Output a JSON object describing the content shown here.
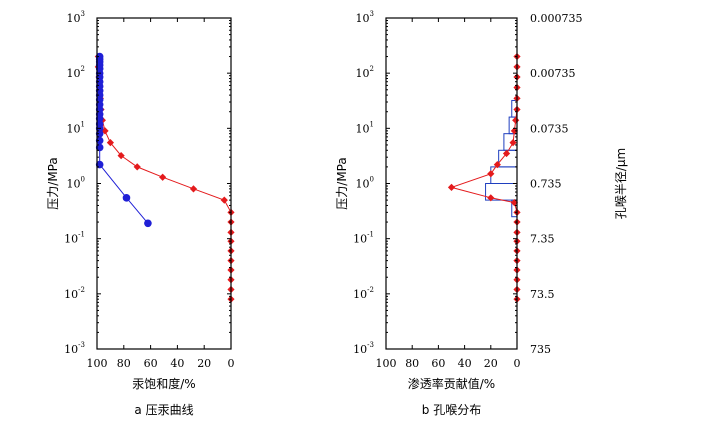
{
  "chart_data": [
    {
      "type": "line",
      "caption": "a 压汞曲线",
      "xlabel": "汞饱和度/%",
      "ylabel": "压力/MPa",
      "xlim": [
        100,
        0
      ],
      "ylim": [
        0.001,
        1000
      ],
      "y_scale": "log",
      "x_ticks": [
        "100",
        "80",
        "60",
        "40",
        "20",
        "0"
      ],
      "y_ticks": [
        {
          "base": "10",
          "exp": "3"
        },
        {
          "base": "10",
          "exp": "2"
        },
        {
          "base": "10",
          "exp": "1"
        },
        {
          "base": "10",
          "exp": "0"
        },
        {
          "base": "10",
          "exp": "-1"
        },
        {
          "base": "10",
          "exp": "-2"
        },
        {
          "base": "10",
          "exp": "-3"
        }
      ],
      "series": [
        {
          "color": "#e41a1c",
          "marker": "diamond",
          "points": [
            {
              "x": 0,
              "y": 0.008
            },
            {
              "x": 0,
              "y": 0.012
            },
            {
              "x": 0,
              "y": 0.018
            },
            {
              "x": 0,
              "y": 0.027
            },
            {
              "x": 0,
              "y": 0.04
            },
            {
              "x": 0,
              "y": 0.06
            },
            {
              "x": 0,
              "y": 0.09
            },
            {
              "x": 0,
              "y": 0.13
            },
            {
              "x": 0,
              "y": 0.2
            },
            {
              "x": 0,
              "y": 0.3
            },
            {
              "x": 5,
              "y": 0.5
            },
            {
              "x": 28,
              "y": 0.8
            },
            {
              "x": 51,
              "y": 1.3
            },
            {
              "x": 70,
              "y": 2.0
            },
            {
              "x": 82,
              "y": 3.2
            },
            {
              "x": 90,
              "y": 5.5
            },
            {
              "x": 94,
              "y": 9
            },
            {
              "x": 96,
              "y": 14
            },
            {
              "x": 97,
              "y": 22
            },
            {
              "x": 97.5,
              "y": 35
            },
            {
              "x": 98,
              "y": 55
            },
            {
              "x": 98.5,
              "y": 85
            },
            {
              "x": 99,
              "y": 130
            },
            {
              "x": 99,
              "y": 200
            }
          ]
        },
        {
          "color": "#1f1fd6",
          "marker": "circle",
          "points": [
            {
              "x": 62,
              "y": 0.19
            },
            {
              "x": 78,
              "y": 0.55
            },
            {
              "x": 98,
              "y": 2.2
            },
            {
              "x": 98,
              "y": 4.5
            },
            {
              "x": 98,
              "y": 6
            },
            {
              "x": 98,
              "y": 8
            },
            {
              "x": 98,
              "y": 10
            },
            {
              "x": 98,
              "y": 12
            },
            {
              "x": 98,
              "y": 15
            },
            {
              "x": 98,
              "y": 18
            },
            {
              "x": 98,
              "y": 22
            },
            {
              "x": 98,
              "y": 27
            },
            {
              "x": 98,
              "y": 33
            },
            {
              "x": 98,
              "y": 40
            },
            {
              "x": 98,
              "y": 48
            },
            {
              "x": 98,
              "y": 58
            },
            {
              "x": 98,
              "y": 70
            },
            {
              "x": 98,
              "y": 85
            },
            {
              "x": 98,
              "y": 100
            },
            {
              "x": 98,
              "y": 120
            },
            {
              "x": 98,
              "y": 140
            },
            {
              "x": 98,
              "y": 160
            },
            {
              "x": 98,
              "y": 180
            },
            {
              "x": 98,
              "y": 200
            }
          ]
        }
      ]
    },
    {
      "type": "line",
      "caption": "b 孔喉分布",
      "xlabel": "渗透率贡献值/%",
      "ylabel": "压力/MPa",
      "y2label": "孔喉半径/μm",
      "xlim": [
        100,
        0
      ],
      "ylim": [
        0.001,
        1000
      ],
      "y_scale": "log",
      "x_ticks": [
        "100",
        "80",
        "60",
        "40",
        "20",
        "0"
      ],
      "y_ticks": [
        {
          "base": "10",
          "exp": "3"
        },
        {
          "base": "10",
          "exp": "2"
        },
        {
          "base": "10",
          "exp": "1"
        },
        {
          "base": "10",
          "exp": "0"
        },
        {
          "base": "10",
          "exp": "-1"
        },
        {
          "base": "10",
          "exp": "-2"
        },
        {
          "base": "10",
          "exp": "-3"
        }
      ],
      "y2_ticks": [
        "0.000735",
        "0.00735",
        "0.0735",
        "0.735",
        "7.35",
        "73.5",
        "735"
      ],
      "histogram": [
        {
          "y0": 0.25,
          "y1": 0.5,
          "value": 4
        },
        {
          "y0": 0.5,
          "y1": 1.0,
          "value": 24
        },
        {
          "y0": 1.0,
          "y1": 2.0,
          "value": 20
        },
        {
          "y0": 2.0,
          "y1": 4.0,
          "value": 14
        },
        {
          "y0": 4.0,
          "y1": 8.0,
          "value": 10
        },
        {
          "y0": 8.0,
          "y1": 16.0,
          "value": 6
        },
        {
          "y0": 16.0,
          "y1": 32.0,
          "value": 4
        }
      ],
      "series": [
        {
          "color": "#e41a1c",
          "marker": "diamond",
          "points": [
            {
              "x": 0,
              "y": 0.008
            },
            {
              "x": 0,
              "y": 0.012
            },
            {
              "x": 0,
              "y": 0.018
            },
            {
              "x": 0,
              "y": 0.027
            },
            {
              "x": 0,
              "y": 0.04
            },
            {
              "x": 0,
              "y": 0.06
            },
            {
              "x": 0,
              "y": 0.09
            },
            {
              "x": 0,
              "y": 0.13
            },
            {
              "x": 0,
              "y": 0.2
            },
            {
              "x": 0,
              "y": 0.3
            },
            {
              "x": 2,
              "y": 0.45
            },
            {
              "x": 20,
              "y": 0.55
            },
            {
              "x": 50,
              "y": 0.85
            },
            {
              "x": 20,
              "y": 1.5
            },
            {
              "x": 15,
              "y": 2.2
            },
            {
              "x": 8,
              "y": 3.5
            },
            {
              "x": 3,
              "y": 5.5
            },
            {
              "x": 2,
              "y": 9
            },
            {
              "x": 1,
              "y": 14
            },
            {
              "x": 0,
              "y": 22
            },
            {
              "x": 0,
              "y": 35
            },
            {
              "x": 0,
              "y": 55
            },
            {
              "x": 0,
              "y": 85
            },
            {
              "x": 0,
              "y": 130
            },
            {
              "x": 0,
              "y": 200
            }
          ]
        }
      ]
    }
  ]
}
